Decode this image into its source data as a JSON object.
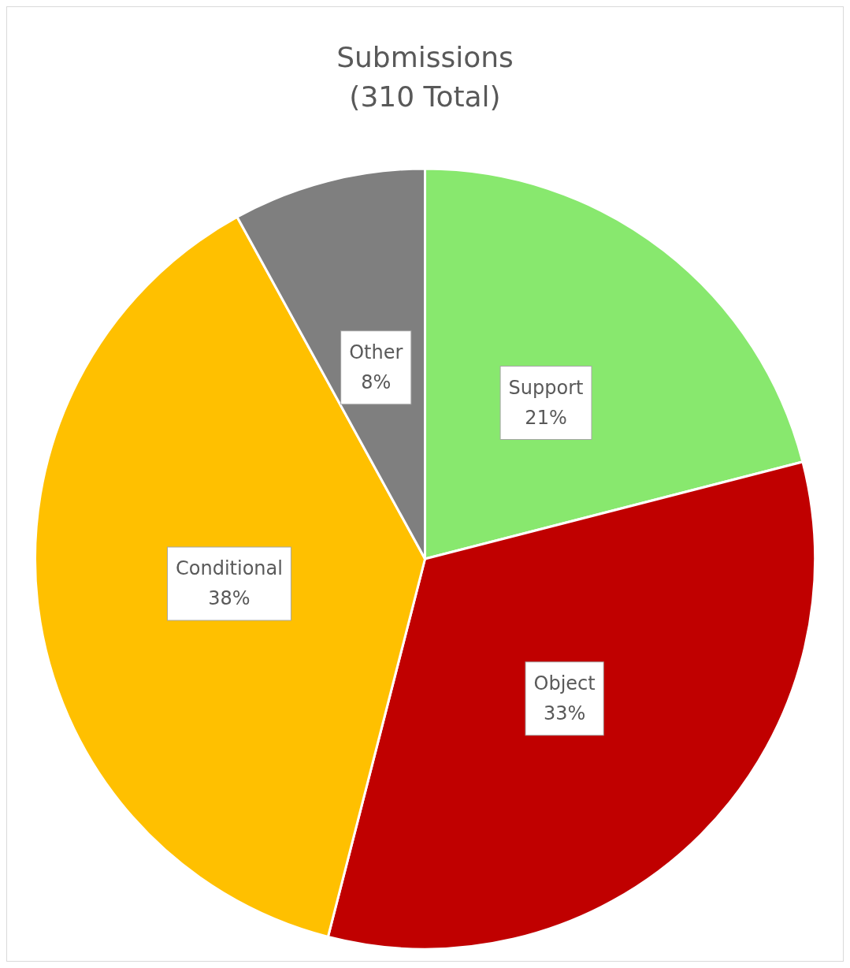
{
  "chart_data": {
    "type": "pie",
    "title": "Submissions",
    "subtitle": "(310 Total)",
    "categories": [
      "Support",
      "Object",
      "Conditional",
      "Other"
    ],
    "values": [
      21,
      33,
      38,
      8
    ],
    "colors": [
      "#88e86e",
      "#c00000",
      "#ffc000",
      "#7f7f7f"
    ],
    "value_labels": [
      "21%",
      "33%",
      "38%",
      "8%"
    ],
    "legend": false
  }
}
